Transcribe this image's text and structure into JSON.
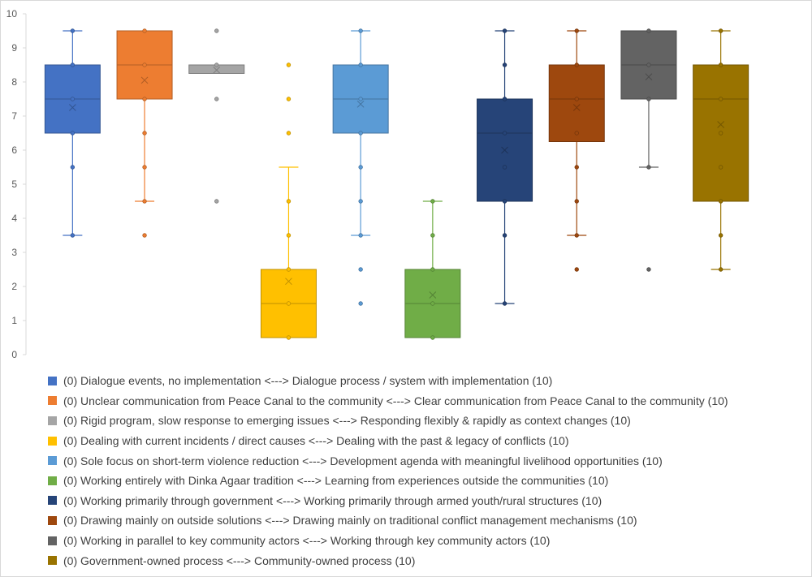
{
  "chart_data": {
    "type": "box",
    "title": "",
    "xlabel": "",
    "ylabel": "",
    "ylim": [
      0,
      10
    ],
    "yticks": [
      "0",
      "1",
      "2",
      "3",
      "4",
      "5",
      "6",
      "7",
      "8",
      "9",
      "10"
    ],
    "grid": false,
    "legend_position": "bottom",
    "series": [
      {
        "name": "(0) Dialogue events, no implementation <---> Dialogue process / system with implementation (10)",
        "color": "#4472C4",
        "q1": 6.5,
        "median": 7.5,
        "q3": 8.5,
        "mean": 7.25,
        "whisker_low": 3.5,
        "whisker_high": 9.5,
        "outliers": [],
        "points": [
          9.5,
          8.5,
          7.5,
          6.5,
          5.5,
          3.5
        ]
      },
      {
        "name": "(0) Unclear communication from Peace Canal to the community <---> Clear communication from Peace Canal to the community (10)",
        "color": "#ED7D31",
        "q1": 7.5,
        "median": 8.5,
        "q3": 9.5,
        "mean": 8.05,
        "whisker_low": 4.5,
        "whisker_high": 9.5,
        "outliers": [
          3.5
        ],
        "points": [
          9.5,
          8.5,
          7.5,
          6.5,
          5.5,
          4.5
        ]
      },
      {
        "name": "(0) Rigid program, slow response to emerging issues <---> Responding flexibly & rapidly as context changes (10)",
        "color": "#A5A5A5",
        "q1": 8.25,
        "median": 8.5,
        "q3": 8.5,
        "mean": 8.35,
        "whisker_low": 8.25,
        "whisker_high": 8.5,
        "outliers": [
          9.5,
          7.5,
          4.5
        ],
        "points": [
          8.5
        ]
      },
      {
        "name": "(0) Dealing with current incidents / direct causes <---> Dealing with the past & legacy of conflicts (10)",
        "color": "#FFC000",
        "q1": 0.5,
        "median": 1.5,
        "q3": 2.5,
        "mean": 2.15,
        "whisker_low": 0.5,
        "whisker_high": 5.5,
        "outliers": [
          8.5,
          7.5,
          6.5
        ],
        "points": [
          4.5,
          3.5,
          2.5,
          1.5,
          0.5
        ]
      },
      {
        "name": "(0) Sole focus on short-term violence reduction <---> Development agenda with meaningful livelihood opportunities (10)",
        "color": "#5B9BD5",
        "q1": 6.5,
        "median": 7.5,
        "q3": 8.5,
        "mean": 7.35,
        "whisker_low": 3.5,
        "whisker_high": 9.5,
        "outliers": [
          2.5,
          1.5
        ],
        "points": [
          9.5,
          8.5,
          7.5,
          6.5,
          5.5,
          4.5,
          3.5
        ]
      },
      {
        "name": "(0) Working entirely with Dinka Agaar tradition <---> Learning from experiences outside the communities (10)",
        "color": "#70AD47",
        "q1": 0.5,
        "median": 1.5,
        "q3": 2.5,
        "mean": 1.75,
        "whisker_low": 0.5,
        "whisker_high": 4.5,
        "outliers": [],
        "points": [
          4.5,
          3.5,
          2.5,
          1.5,
          0.5
        ]
      },
      {
        "name": "(0) Working primarily through government <---> Working primarily through armed youth/rural structures (10)",
        "color": "#264478",
        "q1": 4.5,
        "median": 6.5,
        "q3": 7.5,
        "mean": 6.0,
        "whisker_low": 1.5,
        "whisker_high": 9.5,
        "outliers": [],
        "points": [
          9.5,
          8.5,
          7.5,
          6.5,
          5.5,
          4.5,
          3.5,
          1.5
        ]
      },
      {
        "name": "(0) Drawing mainly on outside solutions <---> Drawing mainly on traditional conflict management mechanisms (10)",
        "color": "#9E480E",
        "q1": 6.25,
        "median": 7.5,
        "q3": 8.5,
        "mean": 7.25,
        "whisker_low": 3.5,
        "whisker_high": 9.5,
        "outliers": [
          2.5
        ],
        "points": [
          9.5,
          8.5,
          7.5,
          6.5,
          5.5,
          4.5,
          3.5
        ]
      },
      {
        "name": "(0) Working in parallel to key community actors <---> Working through key community actors (10)",
        "color": "#636363",
        "q1": 7.5,
        "median": 8.5,
        "q3": 9.5,
        "mean": 8.15,
        "whisker_low": 5.5,
        "whisker_high": 9.5,
        "outliers": [
          2.5
        ],
        "points": [
          9.5,
          8.5,
          7.5,
          5.5
        ]
      },
      {
        "name": "(0) Government-owned process <---> Community-owned process (10)",
        "color": "#997300",
        "q1": 4.5,
        "median": 7.5,
        "q3": 8.5,
        "mean": 6.75,
        "whisker_low": 2.5,
        "whisker_high": 9.5,
        "outliers": [],
        "points": [
          9.5,
          8.5,
          7.5,
          6.5,
          5.5,
          4.5,
          3.5,
          2.5
        ]
      }
    ]
  }
}
